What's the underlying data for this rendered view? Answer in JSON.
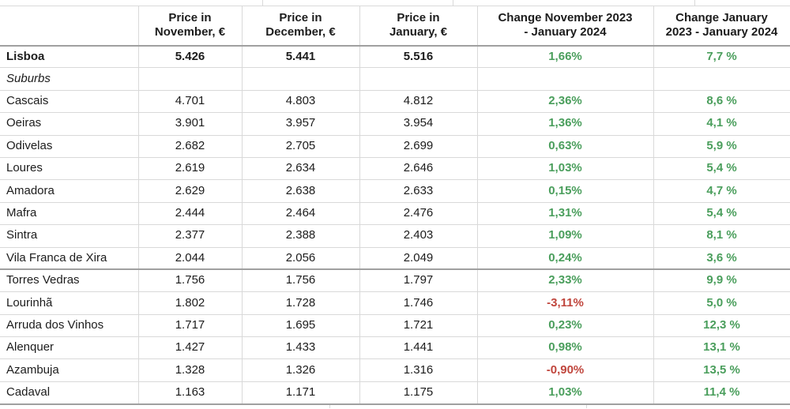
{
  "colors": {
    "positive": "#4a9e5c",
    "negative": "#c0463d",
    "grid_light": "#d9d9d9",
    "grid_dark": "#a0a0a0",
    "text": "#1c1c1c",
    "background": "#ffffff"
  },
  "table": {
    "header": [
      {
        "lines": [
          ""
        ]
      },
      {
        "lines": [
          "Price in",
          "November, €"
        ]
      },
      {
        "lines": [
          "Price in",
          "December, €"
        ]
      },
      {
        "lines": [
          "Price in",
          "January, €"
        ]
      },
      {
        "lines": [
          "Change November 2023",
          "- January 2024"
        ]
      },
      {
        "lines": [
          "Change January",
          "2023 - January 2024"
        ]
      }
    ],
    "rows": [
      {
        "name": "Lisboa",
        "type": "city-total",
        "prices": [
          "5.426",
          "5.441",
          "5.516"
        ],
        "changes": [
          "1,66%",
          "7,7 %"
        ]
      },
      {
        "name": "Suburbs",
        "type": "section",
        "prices": [
          "",
          "",
          ""
        ],
        "changes": [
          "",
          ""
        ]
      },
      {
        "name": "Cascais",
        "type": "suburb",
        "prices": [
          "4.701",
          "4.803",
          "4.812"
        ],
        "changes": [
          "2,36%",
          "8,6 %"
        ]
      },
      {
        "name": "Oeiras",
        "type": "suburb",
        "prices": [
          "3.901",
          "3.957",
          "3.954"
        ],
        "changes": [
          "1,36%",
          "4,1 %"
        ]
      },
      {
        "name": "Odivelas",
        "type": "suburb",
        "prices": [
          "2.682",
          "2.705",
          "2.699"
        ],
        "changes": [
          "0,63%",
          "5,9 %"
        ]
      },
      {
        "name": "Loures",
        "type": "suburb",
        "prices": [
          "2.619",
          "2.634",
          "2.646"
        ],
        "changes": [
          "1,03%",
          "5,4 %"
        ]
      },
      {
        "name": "Amadora",
        "type": "suburb",
        "prices": [
          "2.629",
          "2.638",
          "2.633"
        ],
        "changes": [
          "0,15%",
          "4,7 %"
        ]
      },
      {
        "name": "Mafra",
        "type": "suburb",
        "prices": [
          "2.444",
          "2.464",
          "2.476"
        ],
        "changes": [
          "1,31%",
          "5,4 %"
        ]
      },
      {
        "name": "Sintra",
        "type": "suburb",
        "prices": [
          "2.377",
          "2.388",
          "2.403"
        ],
        "changes": [
          "1,09%",
          "8,1 %"
        ]
      },
      {
        "name": "Vila Franca de Xira",
        "type": "suburb",
        "section_break_after": true,
        "prices": [
          "2.044",
          "2.056",
          "2.049"
        ],
        "changes": [
          "0,24%",
          "3,6 %"
        ]
      },
      {
        "name": "Torres Vedras",
        "type": "suburb",
        "prices": [
          "1.756",
          "1.756",
          "1.797"
        ],
        "changes": [
          "2,33%",
          "9,9 %"
        ]
      },
      {
        "name": "Lourinhã",
        "type": "suburb",
        "prices": [
          "1.802",
          "1.728",
          "1.746"
        ],
        "changes": [
          "-3,11%",
          "5,0 %"
        ]
      },
      {
        "name": "Arruda dos Vinhos",
        "type": "suburb",
        "prices": [
          "1.717",
          "1.695",
          "1.721"
        ],
        "changes": [
          "0,23%",
          "12,3 %"
        ]
      },
      {
        "name": "Alenquer",
        "type": "suburb",
        "prices": [
          "1.427",
          "1.433",
          "1.441"
        ],
        "changes": [
          "0,98%",
          "13,1 %"
        ]
      },
      {
        "name": "Azambuja",
        "type": "suburb",
        "prices": [
          "1.328",
          "1.326",
          "1.316"
        ],
        "changes": [
          "-0,90%",
          "13,5 %"
        ]
      },
      {
        "name": "Cadaval",
        "type": "suburb",
        "prices": [
          "1.163",
          "1.171",
          "1.175"
        ],
        "changes": [
          "1,03%",
          "11,4 %"
        ]
      }
    ]
  }
}
